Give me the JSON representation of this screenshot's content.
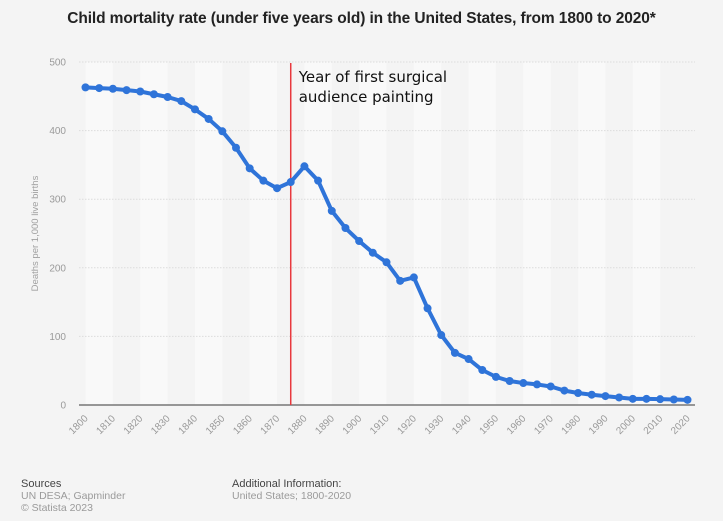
{
  "chart_data": {
    "type": "line",
    "title": "Child mortality rate (under five years old) in the United States, from 1800 to 2020*",
    "xlabel": "",
    "ylabel": "Deaths per 1,000 live births",
    "ylim": [
      0,
      500
    ],
    "xlim": [
      1800,
      2020
    ],
    "grid": true,
    "y_ticks": [
      "0",
      "100",
      "200",
      "300",
      "400",
      "500"
    ],
    "x_ticks": [
      "1800",
      "1810",
      "1820",
      "1830",
      "1840",
      "1850",
      "1860",
      "1870",
      "1880",
      "1890",
      "1900",
      "1910",
      "1920",
      "1930",
      "1940",
      "1950",
      "1960",
      "1970",
      "1980",
      "1990",
      "2000",
      "2010",
      "2020"
    ],
    "series": [
      {
        "name": "Child mortality rate",
        "color": "#2f74d9",
        "x": [
          1800,
          1805,
          1810,
          1815,
          1820,
          1825,
          1830,
          1835,
          1840,
          1845,
          1850,
          1855,
          1860,
          1865,
          1870,
          1875,
          1880,
          1885,
          1890,
          1895,
          1900,
          1905,
          1910,
          1915,
          1920,
          1925,
          1930,
          1935,
          1940,
          1945,
          1950,
          1955,
          1960,
          1965,
          1970,
          1975,
          1980,
          1985,
          1990,
          1995,
          2000,
          2005,
          2010,
          2015,
          2020
        ],
        "values": [
          463,
          462,
          461,
          459,
          457,
          453,
          449,
          443,
          431,
          417,
          399,
          375,
          345,
          327,
          316,
          325,
          348,
          327,
          283,
          258,
          239,
          222,
          208,
          181,
          186,
          141,
          102,
          76,
          67,
          51,
          41,
          35,
          32,
          30,
          27,
          21,
          17.5,
          15,
          13,
          11,
          9,
          9,
          8.5,
          8,
          7.5
        ]
      }
    ],
    "annotation": {
      "year": 1875,
      "color": "#e8383d",
      "lines": [
        "Year of first surgical",
        "audience painting"
      ]
    }
  },
  "footer": {
    "sources_heading": "Sources",
    "sources_line1": "UN DESA; Gapminder",
    "sources_line2": "© Statista 2023",
    "info_heading": "Additional Information:",
    "info_line1": "United States; 1800-2020"
  }
}
